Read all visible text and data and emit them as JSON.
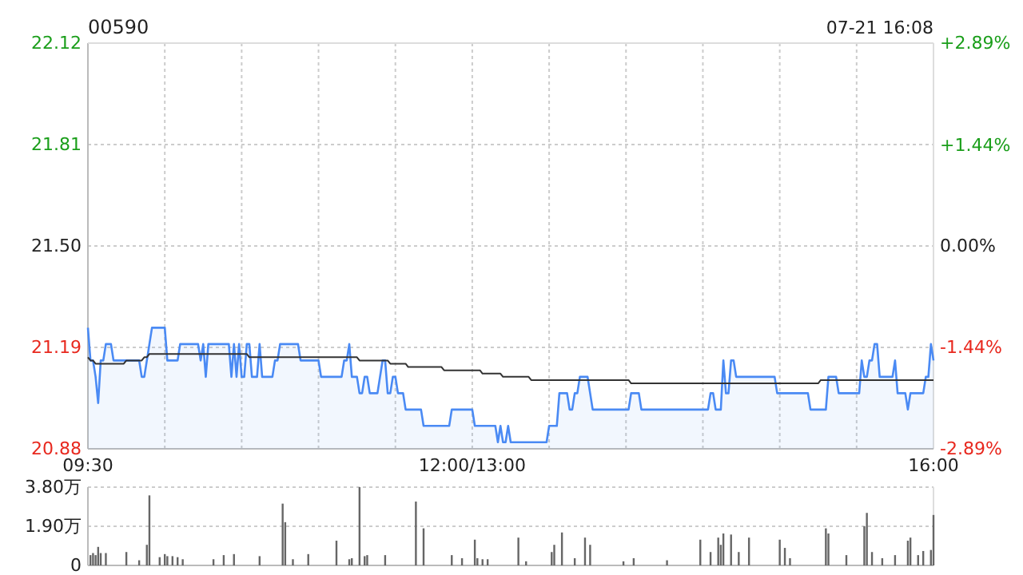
{
  "chart_data": [
    {
      "type": "line",
      "title": "00590",
      "annotations": [
        "07-21 16:08"
      ],
      "categories": [
        "09:30",
        null,
        null,
        null,
        null,
        null,
        null,
        null,
        null,
        null,
        null,
        null,
        null,
        null,
        null,
        null,
        null,
        null,
        null,
        null,
        null,
        null,
        null,
        null,
        null,
        null,
        null,
        null,
        null,
        null,
        null,
        null,
        null,
        null,
        null,
        null,
        null,
        null,
        null,
        null,
        null,
        null,
        null,
        null,
        null,
        null,
        null,
        null,
        null,
        null,
        null,
        null,
        null,
        null,
        null,
        null,
        null,
        null,
        null,
        null,
        null,
        null,
        null,
        null,
        null,
        null,
        null,
        null,
        null,
        null,
        null,
        null,
        null,
        null,
        null,
        null,
        null,
        null,
        null,
        null,
        null,
        null,
        null,
        null,
        null,
        null,
        null,
        null,
        null,
        null,
        null,
        null,
        null,
        null,
        null,
        null,
        null,
        null,
        null,
        null,
        null,
        null,
        null,
        null,
        null,
        null,
        null,
        null,
        null,
        null,
        null,
        null,
        null,
        null,
        null,
        null,
        null,
        null,
        null,
        null,
        null,
        null,
        null,
        null,
        null,
        null,
        null,
        null,
        null,
        null,
        null,
        null,
        null,
        null,
        null,
        null,
        null,
        null,
        null,
        null,
        null,
        null,
        null,
        null,
        null,
        null,
        null,
        null,
        null,
        null,
        "12:00/13:00",
        null,
        null,
        null,
        null,
        null,
        null,
        null,
        null,
        null,
        null,
        null,
        null,
        null,
        null,
        null,
        null,
        null,
        null,
        null,
        null,
        null,
        null,
        null,
        null,
        null,
        null,
        null,
        null,
        null,
        null,
        null,
        null,
        null,
        null,
        null,
        null,
        null,
        null,
        null,
        null,
        null,
        null,
        null,
        null,
        null,
        null,
        null,
        null,
        null,
        null,
        null,
        null,
        null,
        null,
        null,
        null,
        null,
        null,
        null,
        null,
        null,
        null,
        null,
        null,
        null,
        null,
        null,
        null,
        null,
        null,
        null,
        null,
        null,
        null,
        null,
        null,
        null,
        null,
        null,
        null,
        null,
        null,
        null,
        null,
        null,
        null,
        null,
        null,
        null,
        null,
        null,
        null,
        null,
        null,
        null,
        null,
        null,
        null,
        null,
        null,
        null,
        null,
        null,
        null,
        null,
        null,
        null,
        null,
        null,
        null,
        null,
        null,
        null,
        null,
        null,
        null,
        null,
        null,
        null,
        null,
        null,
        null,
        null,
        null,
        null,
        null,
        null,
        null,
        null,
        null,
        null,
        null,
        null,
        null,
        null,
        null,
        null,
        null,
        null,
        null,
        null,
        null,
        null,
        null,
        null,
        null,
        null,
        null,
        null,
        null,
        null,
        null,
        null,
        null,
        null,
        null,
        null,
        null,
        null,
        null,
        null,
        null,
        null,
        null,
        null,
        null,
        null,
        null,
        null,
        null,
        null,
        null,
        null,
        null,
        null,
        null,
        null,
        null,
        null,
        "16:00"
      ],
      "ylim": [
        20.88,
        22.12
      ],
      "yticks": [
        22.12,
        21.81,
        {
          "value": 21.5,
          "label": "21.50"
        },
        21.19,
        20.88
      ],
      "y2lim": [
        -2.89,
        2.89
      ],
      "y2ticks": [
        {
          "value": 2.89,
          "label": "+2.89%"
        },
        {
          "value": 1.44,
          "label": "+1.44%"
        },
        {
          "value": 0,
          "label": "0.00%"
        },
        {
          "value": -1.44,
          "label": "-1.44%"
        },
        {
          "value": -2.89,
          "label": "-2.89%"
        }
      ],
      "grid": true,
      "marker": "none",
      "line_style": "solid",
      "series": [
        {
          "type": "area",
          "color": "#4a8af4",
          "values": [
            21.25,
            21.15,
            21.15,
            21.1,
            21.02,
            21.15,
            21.15,
            21.2,
            21.2,
            21.2,
            21.15,
            21.15,
            21.15,
            21.15,
            21.15,
            21.15,
            21.15,
            21.15,
            21.15,
            21.15,
            21.15,
            21.1,
            21.1,
            21.15,
            21.2,
            21.25,
            21.25,
            21.25,
            21.25,
            21.25,
            21.25,
            21.15,
            21.15,
            21.15,
            21.15,
            21.15,
            21.2,
            21.2,
            21.2,
            21.2,
            21.2,
            21.2,
            21.2,
            21.2,
            21.15,
            21.2,
            21.1,
            21.2,
            21.2,
            21.2,
            21.2,
            21.2,
            21.2,
            21.2,
            21.2,
            21.2,
            21.1,
            21.2,
            21.1,
            21.2,
            21.1,
            21.1,
            21.2,
            21.2,
            21.1,
            21.1,
            21.1,
            21.2,
            21.1,
            21.1,
            21.1,
            21.1,
            21.1,
            21.15,
            21.15,
            21.2,
            21.2,
            21.2,
            21.2,
            21.2,
            21.2,
            21.2,
            21.2,
            21.15,
            21.15,
            21.15,
            21.15,
            21.15,
            21.15,
            21.15,
            21.15,
            21.1,
            21.1,
            21.1,
            21.1,
            21.1,
            21.1,
            21.1,
            21.1,
            21.1,
            21.15,
            21.15,
            21.2,
            21.1,
            21.1,
            21.1,
            21.05,
            21.05,
            21.1,
            21.1,
            21.05,
            21.05,
            21.05,
            21.05,
            21.1,
            21.15,
            21.15,
            21.05,
            21.05,
            21.1,
            21.1,
            21.05,
            21.05,
            21.05,
            21.0,
            21.0,
            21.0,
            21.0,
            21.0,
            21.0,
            21.0,
            20.95,
            20.95,
            20.95,
            20.95,
            20.95,
            20.95,
            20.95,
            20.95,
            20.95,
            20.95,
            20.95,
            21.0,
            21.0,
            21.0,
            21.0,
            21.0,
            21.0,
            21.0,
            21.0,
            21.0,
            20.95,
            20.95,
            20.95,
            20.95,
            20.95,
            20.95,
            20.95,
            20.95,
            20.95,
            20.9,
            20.95,
            20.9,
            20.9,
            20.95,
            20.9,
            20.9,
            20.9,
            20.9,
            20.9,
            20.9,
            20.9,
            20.9,
            20.9,
            20.9,
            20.9,
            20.9,
            20.9,
            20.9,
            20.9,
            20.95,
            20.95,
            20.95,
            20.95,
            21.05,
            21.05,
            21.05,
            21.05,
            21.0,
            21.0,
            21.05,
            21.05,
            21.1,
            21.1,
            21.1,
            21.1,
            21.05,
            21.0,
            21.0,
            21.0,
            21.0,
            21.0,
            21.0,
            21.0,
            21.0,
            21.0,
            21.0,
            21.0,
            21.0,
            21.0,
            21.0,
            21.0,
            21.05,
            21.05,
            21.05,
            21.05,
            21.0,
            21.0,
            21.0,
            21.0,
            21.0,
            21.0,
            21.0,
            21.0,
            21.0,
            21.0,
            21.0,
            21.0,
            21.0,
            21.0,
            21.0,
            21.0,
            21.0,
            21.0,
            21.0,
            21.0,
            21.0,
            21.0,
            21.0,
            21.0,
            21.0,
            21.0,
            21.0,
            21.05,
            21.05,
            21.0,
            21.0,
            21.0,
            21.15,
            21.05,
            21.05,
            21.15,
            21.15,
            21.1,
            21.1,
            21.1,
            21.1,
            21.1,
            21.1,
            21.1,
            21.1,
            21.1,
            21.1,
            21.1,
            21.1,
            21.1,
            21.1,
            21.1,
            21.1,
            21.05,
            21.05,
            21.05,
            21.05,
            21.05,
            21.05,
            21.05,
            21.05,
            21.05,
            21.05,
            21.05,
            21.05,
            21.05,
            21.0,
            21.0,
            21.0,
            21.0,
            21.0,
            21.0,
            21.0,
            21.1,
            21.1,
            21.1,
            21.1,
            21.05,
            21.05,
            21.05,
            21.05,
            21.05,
            21.05,
            21.05,
            21.05,
            21.05,
            21.15,
            21.1,
            21.1,
            21.15,
            21.15,
            21.2,
            21.2,
            21.1,
            21.1,
            21.1,
            21.1,
            21.1,
            21.1,
            21.15,
            21.05,
            21.05,
            21.05,
            21.05,
            21.0,
            21.05,
            21.05,
            21.05,
            21.05,
            21.05,
            21.05,
            21.1,
            21.1,
            21.2,
            21.15
          ]
        },
        {
          "type": "line",
          "color": "#333333",
          "values": [
            21.16,
            21.15,
            21.15,
            21.14,
            21.14,
            21.14,
            21.14,
            21.14,
            21.14,
            21.14,
            21.14,
            21.14,
            21.14,
            21.14,
            21.14,
            21.15,
            21.15,
            21.15,
            21.15,
            21.15,
            21.15,
            21.15,
            21.16,
            21.16,
            21.17,
            21.17,
            21.17,
            21.17,
            21.17,
            21.17,
            21.17,
            21.17,
            21.17,
            21.17,
            21.17,
            21.17,
            21.17,
            21.17,
            21.17,
            21.17,
            21.17,
            21.17,
            21.17,
            21.17,
            21.17,
            21.17,
            21.17,
            21.17,
            21.17,
            21.17,
            21.17,
            21.17,
            21.17,
            21.17,
            21.17,
            21.17,
            21.17,
            21.17,
            21.17,
            21.17,
            21.17,
            21.17,
            21.17,
            21.16,
            21.16,
            21.16,
            21.16,
            21.16,
            21.16,
            21.16,
            21.16,
            21.16,
            21.16,
            21.16,
            21.16,
            21.16,
            21.16,
            21.16,
            21.16,
            21.16,
            21.16,
            21.16,
            21.16,
            21.16,
            21.16,
            21.16,
            21.16,
            21.16,
            21.16,
            21.16,
            21.16,
            21.16,
            21.16,
            21.16,
            21.16,
            21.16,
            21.16,
            21.16,
            21.16,
            21.16,
            21.16,
            21.16,
            21.16,
            21.16,
            21.16,
            21.16,
            21.15,
            21.15,
            21.15,
            21.15,
            21.15,
            21.15,
            21.15,
            21.15,
            21.15,
            21.15,
            21.15,
            21.15,
            21.14,
            21.14,
            21.14,
            21.14,
            21.14,
            21.14,
            21.14,
            21.13,
            21.13,
            21.13,
            21.13,
            21.13,
            21.13,
            21.13,
            21.13,
            21.13,
            21.13,
            21.13,
            21.13,
            21.13,
            21.13,
            21.12,
            21.12,
            21.12,
            21.12,
            21.12,
            21.12,
            21.12,
            21.12,
            21.12,
            21.12,
            21.12,
            21.12,
            21.12,
            21.12,
            21.12,
            21.11,
            21.11,
            21.11,
            21.11,
            21.11,
            21.11,
            21.11,
            21.11,
            21.1,
            21.1,
            21.1,
            21.1,
            21.1,
            21.1,
            21.1,
            21.1,
            21.1,
            21.1,
            21.1,
            21.09,
            21.09,
            21.09,
            21.09,
            21.09,
            21.09,
            21.09,
            21.09,
            21.09,
            21.09,
            21.09,
            21.09,
            21.09,
            21.09,
            21.09,
            21.09,
            21.09,
            21.09,
            21.09,
            21.09,
            21.09,
            21.09,
            21.09,
            21.09,
            21.09,
            21.09,
            21.09,
            21.09,
            21.09,
            21.09,
            21.09,
            21.09,
            21.09,
            21.09,
            21.09,
            21.09,
            21.09,
            21.09,
            21.09,
            21.08,
            21.08,
            21.08,
            21.08,
            21.08,
            21.08,
            21.08,
            21.08,
            21.08,
            21.08,
            21.08,
            21.08,
            21.08,
            21.08,
            21.08,
            21.08,
            21.08,
            21.08,
            21.08,
            21.08,
            21.08,
            21.08,
            21.08,
            21.08,
            21.08,
            21.08,
            21.08,
            21.08,
            21.08,
            21.08,
            21.08,
            21.08,
            21.08,
            21.08,
            21.08,
            21.08,
            21.08,
            21.08,
            21.08,
            21.08,
            21.08,
            21.08,
            21.08,
            21.08,
            21.08,
            21.08,
            21.08,
            21.08,
            21.08,
            21.08,
            21.08,
            21.08,
            21.08,
            21.08,
            21.08,
            21.08,
            21.08,
            21.08,
            21.08,
            21.08,
            21.08,
            21.08,
            21.08,
            21.08,
            21.08,
            21.08,
            21.08,
            21.08,
            21.08,
            21.08,
            21.08,
            21.08,
            21.08,
            21.08,
            21.09,
            21.09,
            21.09,
            21.09,
            21.09,
            21.09,
            21.09,
            21.09,
            21.09,
            21.09,
            21.09,
            21.09,
            21.09,
            21.09,
            21.09,
            21.09,
            21.09,
            21.09,
            21.09,
            21.09,
            21.09,
            21.09,
            21.09,
            21.09,
            21.09,
            21.09,
            21.09,
            21.09,
            21.09,
            21.09,
            21.09,
            21.09,
            21.09,
            21.09,
            21.09,
            21.09,
            21.09,
            21.09,
            21.09,
            21.09,
            21.09,
            21.09,
            21.09,
            21.09,
            21.09
          ]
        }
      ]
    },
    {
      "type": "bar",
      "color": "#666666",
      "tick_labels": "y",
      "grid": "y",
      "categories": [
        null,
        null,
        null,
        null,
        null,
        null,
        null,
        null,
        null,
        null,
        null,
        null,
        null,
        null,
        null,
        null,
        null,
        null,
        null,
        null,
        null,
        null,
        null,
        null,
        null,
        null,
        null,
        null,
        null,
        null,
        null,
        null,
        null,
        null,
        null,
        null,
        null,
        null,
        null,
        null,
        null,
        null,
        null,
        null,
        null,
        null,
        null,
        null,
        null,
        null,
        null,
        null,
        null,
        null,
        null,
        null,
        null,
        null,
        null,
        null,
        null,
        null,
        null,
        null,
        null,
        null,
        null,
        null,
        null,
        null,
        null,
        null,
        null,
        null,
        null,
        null,
        null,
        null,
        null,
        null,
        null,
        null,
        null,
        null,
        null,
        null,
        null,
        null,
        null,
        null,
        null,
        null,
        null,
        null,
        null,
        null,
        null,
        null,
        null,
        null,
        null,
        null,
        null,
        null,
        null,
        null,
        null,
        null,
        null,
        null,
        null,
        null,
        null,
        null,
        null,
        null,
        null,
        null,
        null,
        null,
        null,
        null,
        null,
        null,
        null,
        null,
        null,
        null,
        null,
        null,
        null,
        null,
        null,
        null,
        null,
        null,
        null,
        null,
        null,
        null,
        null,
        null,
        null,
        null,
        null,
        null,
        null,
        null,
        null,
        null,
        null,
        null,
        null,
        null,
        null,
        null,
        null,
        null,
        null,
        null,
        null,
        null,
        null,
        null,
        null,
        null,
        null,
        null,
        null,
        null,
        null,
        null,
        null,
        null,
        null,
        null,
        null,
        null,
        null,
        null,
        null,
        null,
        null,
        null,
        null,
        null,
        null,
        null,
        null,
        null,
        null,
        null,
        null,
        null,
        null,
        null,
        null,
        null,
        null,
        null,
        null,
        null,
        null,
        null,
        null,
        null,
        null,
        null,
        null,
        null,
        null,
        null,
        null,
        null,
        null,
        null,
        null,
        null,
        null,
        null,
        null,
        null,
        null,
        null,
        null,
        null,
        null,
        null,
        null,
        null,
        null,
        null,
        null,
        null,
        null,
        null,
        null,
        null,
        null,
        null,
        null,
        null,
        null,
        null,
        null,
        null,
        null,
        null,
        null,
        null,
        null,
        null,
        null,
        null,
        null,
        null,
        null,
        null,
        null,
        null,
        null,
        null,
        null,
        null,
        null,
        null,
        null,
        null,
        null,
        null,
        null,
        null,
        null,
        null,
        null,
        null,
        null,
        null,
        null,
        null,
        null,
        null,
        null,
        null,
        null,
        null,
        null,
        null,
        null,
        null,
        null,
        null,
        null,
        null,
        null,
        null,
        null,
        null,
        null,
        null,
        null,
        null,
        null,
        null,
        null,
        null,
        null,
        null,
        null,
        null,
        null,
        null,
        null,
        null,
        null,
        null,
        null,
        null,
        null,
        null,
        null,
        null,
        null,
        null,
        null,
        null,
        null,
        null,
        null,
        null,
        null
      ],
      "ylim": [
        0,
        3.8
      ],
      "yticks": [
        0,
        {
          "value": 1.9,
          "label": "1.90万"
        },
        {
          "value": 3.8,
          "label": "3.80万"
        }
      ],
      "values": [
        null,
        0.5,
        0.6,
        0.5,
        0.9,
        0.6,
        null,
        0.6,
        null,
        null,
        null,
        null,
        null,
        null,
        null,
        0.65,
        null,
        null,
        null,
        null,
        0.25,
        null,
        null,
        1.0,
        3.4,
        null,
        null,
        null,
        0.4,
        null,
        0.55,
        0.45,
        null,
        0.45,
        null,
        0.4,
        null,
        0.3,
        null,
        null,
        null,
        null,
        null,
        null,
        null,
        null,
        null,
        null,
        null,
        0.3,
        null,
        null,
        null,
        0.5,
        null,
        null,
        null,
        0.55,
        null,
        null,
        null,
        null,
        null,
        null,
        null,
        null,
        null,
        0.45,
        null,
        null,
        null,
        null,
        null,
        null,
        null,
        null,
        3.0,
        2.1,
        null,
        null,
        0.3,
        null,
        null,
        null,
        null,
        null,
        0.55,
        null,
        null,
        null,
        null,
        null,
        null,
        null,
        null,
        null,
        null,
        1.2,
        null,
        null,
        null,
        null,
        0.3,
        0.35,
        null,
        null,
        3.8,
        null,
        0.45,
        0.5,
        null,
        null,
        null,
        null,
        null,
        null,
        0.5,
        null,
        null,
        null,
        null,
        null,
        null,
        null,
        null,
        null,
        null,
        null,
        3.1,
        null,
        null,
        1.8,
        null,
        null,
        null,
        null,
        null,
        null,
        null,
        null,
        null,
        null,
        0.5,
        null,
        null,
        null,
        0.35,
        null,
        null,
        null,
        null,
        1.25,
        0.35,
        null,
        0.3,
        null,
        0.3,
        null,
        null,
        null,
        null,
        null,
        null,
        null,
        null,
        null,
        null,
        null,
        1.35,
        null,
        null,
        0.2,
        null,
        null,
        null,
        null,
        null,
        null,
        null,
        null,
        null,
        0.65,
        1.0,
        null,
        null,
        1.6,
        null,
        null,
        null,
        null,
        0.35,
        null,
        null,
        null,
        1.35,
        null,
        1.0,
        null,
        null,
        null,
        null,
        null,
        null,
        null,
        null,
        null,
        null,
        null,
        null,
        0.2,
        null,
        null,
        null,
        0.35,
        null,
        null,
        null,
        null,
        null,
        null,
        null,
        null,
        null,
        null,
        null,
        null,
        0.25,
        null,
        null,
        null,
        null,
        null,
        null,
        null,
        null,
        null,
        null,
        null,
        null,
        1.25,
        null,
        null,
        null,
        0.65,
        null,
        null,
        1.35,
        1.0,
        1.55,
        null,
        null,
        1.5,
        null,
        null,
        0.65,
        null,
        null,
        null,
        1.35,
        null,
        null,
        null,
        null,
        null,
        null,
        null,
        null,
        null,
        null,
        null,
        1.25,
        null,
        0.85,
        null,
        0.35,
        null,
        null,
        null,
        null,
        null,
        null,
        null,
        null,
        null,
        null,
        null,
        null,
        null,
        1.8,
        1.55,
        null,
        null,
        null,
        null,
        null,
        null,
        0.5,
        null,
        null,
        null,
        null,
        null,
        null,
        1.9,
        2.55,
        null,
        0.65,
        null,
        null,
        null,
        0.35,
        null,
        null,
        null,
        null,
        0.5,
        null,
        null,
        null,
        null,
        1.2,
        1.35,
        null,
        null,
        0.5,
        null,
        0.7,
        null,
        null,
        0.75,
        2.45
      ]
    }
  ]
}
